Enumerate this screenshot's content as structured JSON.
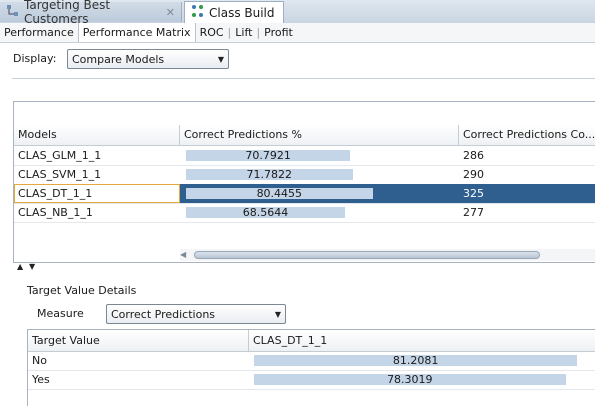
{
  "document_tabs": [
    {
      "label": "Targeting Best Customers",
      "active": false,
      "icon": "workflow-icon"
    },
    {
      "label": "Class Build",
      "active": true,
      "icon": "model-node-icon"
    }
  ],
  "sub_tabs": [
    "Performance",
    "Performance Matrix",
    "ROC",
    "Lift",
    "Profit"
  ],
  "active_sub_tab": "Performance Matrix",
  "display": {
    "label": "Display:",
    "value": "Compare Models"
  },
  "models_table": {
    "columns": [
      "Models",
      "Correct Predictions %",
      "Correct Predictions Co..."
    ],
    "rows": [
      {
        "model": "CLAS_GLM_1_1",
        "pct": 70.7921,
        "pct_text": "70.7921",
        "count": "286",
        "selected": false
      },
      {
        "model": "CLAS_SVM_1_1",
        "pct": 71.7822,
        "pct_text": "71.7822",
        "count": "290",
        "selected": false
      },
      {
        "model": "CLAS_DT_1_1",
        "pct": 80.4455,
        "pct_text": "80.4455",
        "count": "325",
        "selected": true
      },
      {
        "model": "CLAS_NB_1_1",
        "pct": 68.5644,
        "pct_text": "68.5644",
        "count": "277",
        "selected": false
      }
    ]
  },
  "target_details": {
    "title": "Target Value Details",
    "measure_label": "Measure",
    "measure_value": "Correct Predictions",
    "columns": [
      "Target Value",
      "CLAS_DT_1_1"
    ],
    "rows": [
      {
        "target": "No",
        "value": 81.2081,
        "value_text": "81.2081"
      },
      {
        "target": "Yes",
        "value": 78.3019,
        "value_text": "78.3019"
      }
    ]
  },
  "colors": {
    "selection": "#2e5f8f",
    "bar": "#c5d5e8",
    "focus": "#e3a93a"
  }
}
